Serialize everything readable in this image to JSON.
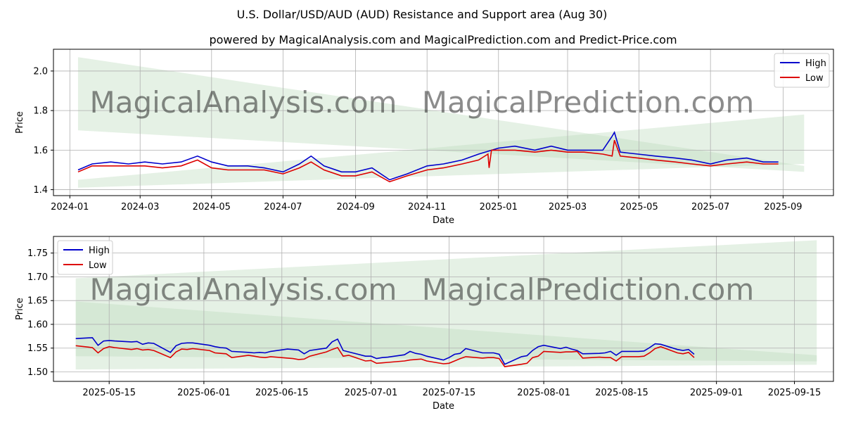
{
  "title": "U.S. Dollar/USD/AUD (AUD) Resistance and Support area (Aug 30)",
  "subtitle": "powered by MagicalAnalysis.com and MagicalPrediction.com and Predict-Price.com",
  "watermarks": [
    "MagicalAnalysis.com",
    "MagicalPrediction.com"
  ],
  "colors": {
    "high": "#0000cc",
    "low": "#dd0000",
    "band": "#bfdcbf",
    "grid": "#b0b0b0"
  },
  "chart_data": [
    {
      "type": "line",
      "xlabel": "Date",
      "ylabel": "Price",
      "grid": true,
      "legend": "top-right",
      "xlim": [
        "2023-12-18",
        "2025-10-14"
      ],
      "ylim": [
        1.37,
        2.11
      ],
      "xticks": [
        "2024-01",
        "2024-03",
        "2024-05",
        "2024-07",
        "2024-09",
        "2024-11",
        "2025-01",
        "2025-03",
        "2025-05",
        "2025-07",
        "2025-09"
      ],
      "xtick_dates": [
        "2024-01-01",
        "2024-03-01",
        "2024-05-01",
        "2024-07-01",
        "2024-09-01",
        "2024-11-01",
        "2025-01-01",
        "2025-03-01",
        "2025-05-01",
        "2025-07-01",
        "2025-09-01"
      ],
      "yticks": [
        "1.4",
        "1.6",
        "1.8",
        "2.0"
      ],
      "ytick_values": [
        1.4,
        1.6,
        1.8,
        2.0
      ],
      "bands": [
        {
          "x": [
            "2024-01-08",
            "2025-09-19"
          ],
          "upper": [
            2.07,
            1.52
          ],
          "lower": [
            1.7,
            1.49
          ]
        },
        {
          "x": [
            "2024-01-08",
            "2025-09-19"
          ],
          "upper": [
            1.45,
            1.78
          ],
          "lower": [
            1.41,
            1.53
          ]
        }
      ],
      "series": [
        {
          "name": "High",
          "x": [
            "2024-01-08",
            "2024-01-20",
            "2024-02-05",
            "2024-02-20",
            "2024-03-05",
            "2024-03-20",
            "2024-04-05",
            "2024-04-19",
            "2024-05-01",
            "2024-05-15",
            "2024-06-01",
            "2024-06-15",
            "2024-07-01",
            "2024-07-15",
            "2024-07-25",
            "2024-08-05",
            "2024-08-20",
            "2024-09-01",
            "2024-09-15",
            "2024-09-30",
            "2024-10-15",
            "2024-11-01",
            "2024-11-15",
            "2024-12-01",
            "2024-12-15",
            "2025-01-01",
            "2025-01-15",
            "2025-02-01",
            "2025-02-15",
            "2025-03-01",
            "2025-03-15",
            "2025-03-31",
            "2025-04-08",
            "2025-04-10",
            "2025-04-15",
            "2025-04-30",
            "2025-05-15",
            "2025-06-01",
            "2025-06-15",
            "2025-07-01",
            "2025-07-15",
            "2025-08-01",
            "2025-08-15",
            "2025-08-28"
          ],
          "values": [
            1.5,
            1.53,
            1.54,
            1.53,
            1.54,
            1.53,
            1.54,
            1.57,
            1.54,
            1.52,
            1.52,
            1.51,
            1.49,
            1.53,
            1.57,
            1.52,
            1.49,
            1.49,
            1.51,
            1.45,
            1.48,
            1.52,
            1.53,
            1.55,
            1.58,
            1.61,
            1.62,
            1.6,
            1.62,
            1.6,
            1.6,
            1.6,
            1.67,
            1.69,
            1.59,
            1.58,
            1.57,
            1.56,
            1.55,
            1.53,
            1.55,
            1.56,
            1.54,
            1.54
          ]
        },
        {
          "name": "Low",
          "x": [
            "2024-01-08",
            "2024-01-20",
            "2024-02-05",
            "2024-02-20",
            "2024-03-05",
            "2024-03-20",
            "2024-04-05",
            "2024-04-19",
            "2024-05-01",
            "2024-05-15",
            "2024-06-01",
            "2024-06-15",
            "2024-07-01",
            "2024-07-15",
            "2024-07-25",
            "2024-08-05",
            "2024-08-20",
            "2024-09-01",
            "2024-09-15",
            "2024-09-30",
            "2024-10-15",
            "2024-11-01",
            "2024-11-15",
            "2024-12-01",
            "2024-12-15",
            "2024-12-23",
            "2024-12-24",
            "2024-12-26",
            "2025-01-01",
            "2025-01-15",
            "2025-02-01",
            "2025-02-15",
            "2025-03-01",
            "2025-03-15",
            "2025-03-31",
            "2025-04-08",
            "2025-04-10",
            "2025-04-15",
            "2025-04-30",
            "2025-05-15",
            "2025-06-01",
            "2025-06-15",
            "2025-07-01",
            "2025-07-15",
            "2025-08-01",
            "2025-08-15",
            "2025-08-28"
          ],
          "values": [
            1.49,
            1.52,
            1.52,
            1.52,
            1.52,
            1.51,
            1.52,
            1.55,
            1.51,
            1.5,
            1.5,
            1.5,
            1.48,
            1.51,
            1.54,
            1.5,
            1.47,
            1.47,
            1.49,
            1.44,
            1.47,
            1.5,
            1.51,
            1.53,
            1.55,
            1.58,
            1.51,
            1.6,
            1.6,
            1.6,
            1.59,
            1.6,
            1.59,
            1.59,
            1.58,
            1.57,
            1.65,
            1.57,
            1.56,
            1.55,
            1.54,
            1.53,
            1.52,
            1.53,
            1.54,
            1.53,
            1.53
          ]
        }
      ]
    },
    {
      "type": "line",
      "xlabel": "Date",
      "ylabel": "Price",
      "grid": true,
      "legend": "top-left",
      "xlim": [
        "2025-05-05",
        "2025-09-22"
      ],
      "ylim": [
        1.48,
        1.785
      ],
      "xticks": [
        "2025-05-15",
        "2025-06-01",
        "2025-06-15",
        "2025-07-01",
        "2025-07-15",
        "2025-08-01",
        "2025-08-15",
        "2025-09-01",
        "2025-09-15"
      ],
      "xtick_dates": [
        "2025-05-15",
        "2025-06-01",
        "2025-06-15",
        "2025-07-01",
        "2025-07-15",
        "2025-08-01",
        "2025-08-15",
        "2025-09-01",
        "2025-09-15"
      ],
      "yticks": [
        "1.50",
        "1.55",
        "1.60",
        "1.65",
        "1.70",
        "1.75"
      ],
      "ytick_values": [
        1.5,
        1.55,
        1.6,
        1.65,
        1.7,
        1.75
      ],
      "bands": [
        {
          "x": [
            "2025-05-09",
            "2025-09-19"
          ],
          "upper": [
            1.648,
            1.535
          ],
          "lower": [
            1.533,
            1.522
          ]
        },
        {
          "x": [
            "2025-05-09",
            "2025-09-19"
          ],
          "upper": [
            1.697,
            1.777
          ],
          "lower": [
            1.505,
            1.515
          ]
        }
      ],
      "series": [
        {
          "name": "High",
          "x": [
            "2025-05-09",
            "2025-05-12",
            "2025-05-13",
            "2025-05-14",
            "2025-05-15",
            "2025-05-16",
            "2025-05-19",
            "2025-05-20",
            "2025-05-21",
            "2025-05-22",
            "2025-05-23",
            "2025-05-26",
            "2025-05-27",
            "2025-05-28",
            "2025-05-29",
            "2025-05-30",
            "2025-06-02",
            "2025-06-03",
            "2025-06-04",
            "2025-06-05",
            "2025-06-06",
            "2025-06-09",
            "2025-06-10",
            "2025-06-11",
            "2025-06-12",
            "2025-06-13",
            "2025-06-16",
            "2025-06-17",
            "2025-06-18",
            "2025-06-19",
            "2025-06-20",
            "2025-06-23",
            "2025-06-24",
            "2025-06-25",
            "2025-06-26",
            "2025-06-27",
            "2025-06-30",
            "2025-07-01",
            "2025-07-02",
            "2025-07-03",
            "2025-07-04",
            "2025-07-07",
            "2025-07-08",
            "2025-07-09",
            "2025-07-10",
            "2025-07-11",
            "2025-07-14",
            "2025-07-15",
            "2025-07-16",
            "2025-07-17",
            "2025-07-18",
            "2025-07-21",
            "2025-07-22",
            "2025-07-23",
            "2025-07-24",
            "2025-07-25",
            "2025-07-28",
            "2025-07-29",
            "2025-07-30",
            "2025-07-31",
            "2025-08-01",
            "2025-08-04",
            "2025-08-05",
            "2025-08-06",
            "2025-08-07",
            "2025-08-08",
            "2025-08-11",
            "2025-08-12",
            "2025-08-13",
            "2025-08-14",
            "2025-08-15",
            "2025-08-18",
            "2025-08-19",
            "2025-08-20",
            "2025-08-21",
            "2025-08-22",
            "2025-08-25",
            "2025-08-26",
            "2025-08-27",
            "2025-08-28"
          ],
          "values": [
            1.57,
            1.572,
            1.556,
            1.565,
            1.566,
            1.565,
            1.563,
            1.564,
            1.558,
            1.561,
            1.56,
            1.541,
            1.555,
            1.56,
            1.561,
            1.561,
            1.556,
            1.553,
            1.551,
            1.55,
            1.543,
            1.541,
            1.54,
            1.541,
            1.54,
            1.543,
            1.548,
            1.547,
            1.546,
            1.538,
            1.545,
            1.55,
            1.563,
            1.569,
            1.545,
            1.542,
            1.533,
            1.533,
            1.528,
            1.53,
            1.531,
            1.536,
            1.543,
            1.539,
            1.537,
            1.533,
            1.525,
            1.53,
            1.537,
            1.539,
            1.549,
            1.54,
            1.54,
            1.54,
            1.537,
            1.516,
            1.532,
            1.534,
            1.545,
            1.553,
            1.556,
            1.549,
            1.552,
            1.548,
            1.545,
            1.538,
            1.539,
            1.54,
            1.543,
            1.535,
            1.543,
            1.543,
            1.544,
            1.551,
            1.559,
            1.558,
            1.547,
            1.545,
            1.547,
            1.537
          ]
        },
        {
          "name": "Low",
          "x": [
            "2025-05-09",
            "2025-05-12",
            "2025-05-13",
            "2025-05-14",
            "2025-05-15",
            "2025-05-16",
            "2025-05-19",
            "2025-05-20",
            "2025-05-21",
            "2025-05-22",
            "2025-05-23",
            "2025-05-26",
            "2025-05-27",
            "2025-05-28",
            "2025-05-29",
            "2025-05-30",
            "2025-06-02",
            "2025-06-03",
            "2025-06-04",
            "2025-06-05",
            "2025-06-06",
            "2025-06-09",
            "2025-06-10",
            "2025-06-11",
            "2025-06-12",
            "2025-06-13",
            "2025-06-16",
            "2025-06-17",
            "2025-06-18",
            "2025-06-19",
            "2025-06-20",
            "2025-06-23",
            "2025-06-24",
            "2025-06-25",
            "2025-06-26",
            "2025-06-27",
            "2025-06-30",
            "2025-07-01",
            "2025-07-02",
            "2025-07-03",
            "2025-07-04",
            "2025-07-07",
            "2025-07-08",
            "2025-07-09",
            "2025-07-10",
            "2025-07-11",
            "2025-07-14",
            "2025-07-15",
            "2025-07-16",
            "2025-07-17",
            "2025-07-18",
            "2025-07-21",
            "2025-07-22",
            "2025-07-23",
            "2025-07-24",
            "2025-07-25",
            "2025-07-28",
            "2025-07-29",
            "2025-07-30",
            "2025-07-31",
            "2025-08-01",
            "2025-08-04",
            "2025-08-05",
            "2025-08-06",
            "2025-08-07",
            "2025-08-08",
            "2025-08-11",
            "2025-08-12",
            "2025-08-13",
            "2025-08-14",
            "2025-08-15",
            "2025-08-18",
            "2025-08-19",
            "2025-08-20",
            "2025-08-21",
            "2025-08-22",
            "2025-08-25",
            "2025-08-26",
            "2025-08-27",
            "2025-08-28"
          ],
          "values": [
            1.555,
            1.551,
            1.54,
            1.549,
            1.553,
            1.551,
            1.547,
            1.549,
            1.546,
            1.547,
            1.545,
            1.53,
            1.542,
            1.548,
            1.547,
            1.549,
            1.545,
            1.54,
            1.539,
            1.538,
            1.53,
            1.535,
            1.533,
            1.531,
            1.53,
            1.532,
            1.529,
            1.528,
            1.526,
            1.527,
            1.533,
            1.542,
            1.547,
            1.551,
            1.533,
            1.535,
            1.523,
            1.524,
            1.518,
            1.519,
            1.52,
            1.523,
            1.525,
            1.526,
            1.527,
            1.523,
            1.517,
            1.518,
            1.523,
            1.528,
            1.532,
            1.529,
            1.53,
            1.53,
            1.528,
            1.511,
            1.516,
            1.518,
            1.53,
            1.533,
            1.543,
            1.541,
            1.542,
            1.542,
            1.543,
            1.529,
            1.531,
            1.53,
            1.53,
            1.523,
            1.532,
            1.532,
            1.533,
            1.54,
            1.549,
            1.553,
            1.54,
            1.538,
            1.541,
            1.53
          ]
        }
      ]
    }
  ]
}
